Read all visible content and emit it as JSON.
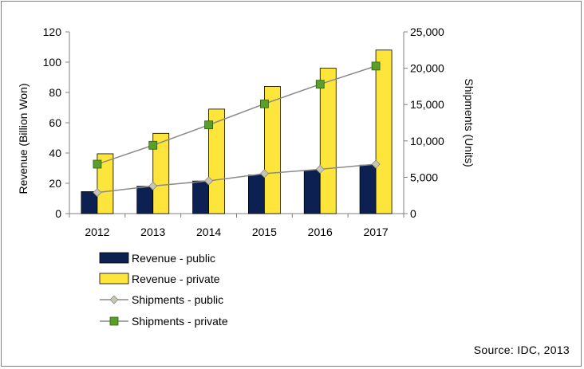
{
  "colors": {
    "revenue_public": "#0c2152",
    "revenue_private": "#fde53c",
    "shipments_public": "#c9c6b3",
    "shipments_private": "#5a9f2a",
    "line": "#8a8a8a",
    "axis": "#808080"
  },
  "chart_data": {
    "type": "bar",
    "categories": [
      "2012",
      "2013",
      "2014",
      "2015",
      "2016",
      "2017"
    ],
    "ylabel": "Revenue (Billion Won)",
    "y2label": "Shipments (Units)",
    "ylim": [
      0,
      120
    ],
    "y2lim": [
      0,
      25000
    ],
    "yticks": [
      0,
      20,
      40,
      60,
      80,
      100,
      120
    ],
    "y2ticks": [
      "0",
      "5,000",
      "10,000",
      "15,000",
      "20,000",
      "25,000"
    ],
    "y2tick_values": [
      0,
      5000,
      10000,
      15000,
      20000,
      25000
    ],
    "grid": false,
    "legend_position": "bottom",
    "series": [
      {
        "name": "Revenue - public",
        "kind": "bar",
        "axis": "left",
        "values": [
          14.5,
          18,
          21.5,
          25.5,
          28.5,
          32
        ]
      },
      {
        "name": "Revenue - private",
        "kind": "bar",
        "axis": "left",
        "values": [
          39.5,
          53,
          69,
          84,
          96,
          108
        ]
      },
      {
        "name": "Shipments - public",
        "kind": "line",
        "marker": "diamond",
        "axis": "right",
        "values": [
          2900,
          3800,
          4500,
          5500,
          6100,
          6800
        ]
      },
      {
        "name": "Shipments - private",
        "kind": "line",
        "marker": "square",
        "axis": "right",
        "values": [
          6800,
          9400,
          12200,
          15100,
          17800,
          20300
        ]
      }
    ]
  },
  "source": "Source: IDC, 2013"
}
